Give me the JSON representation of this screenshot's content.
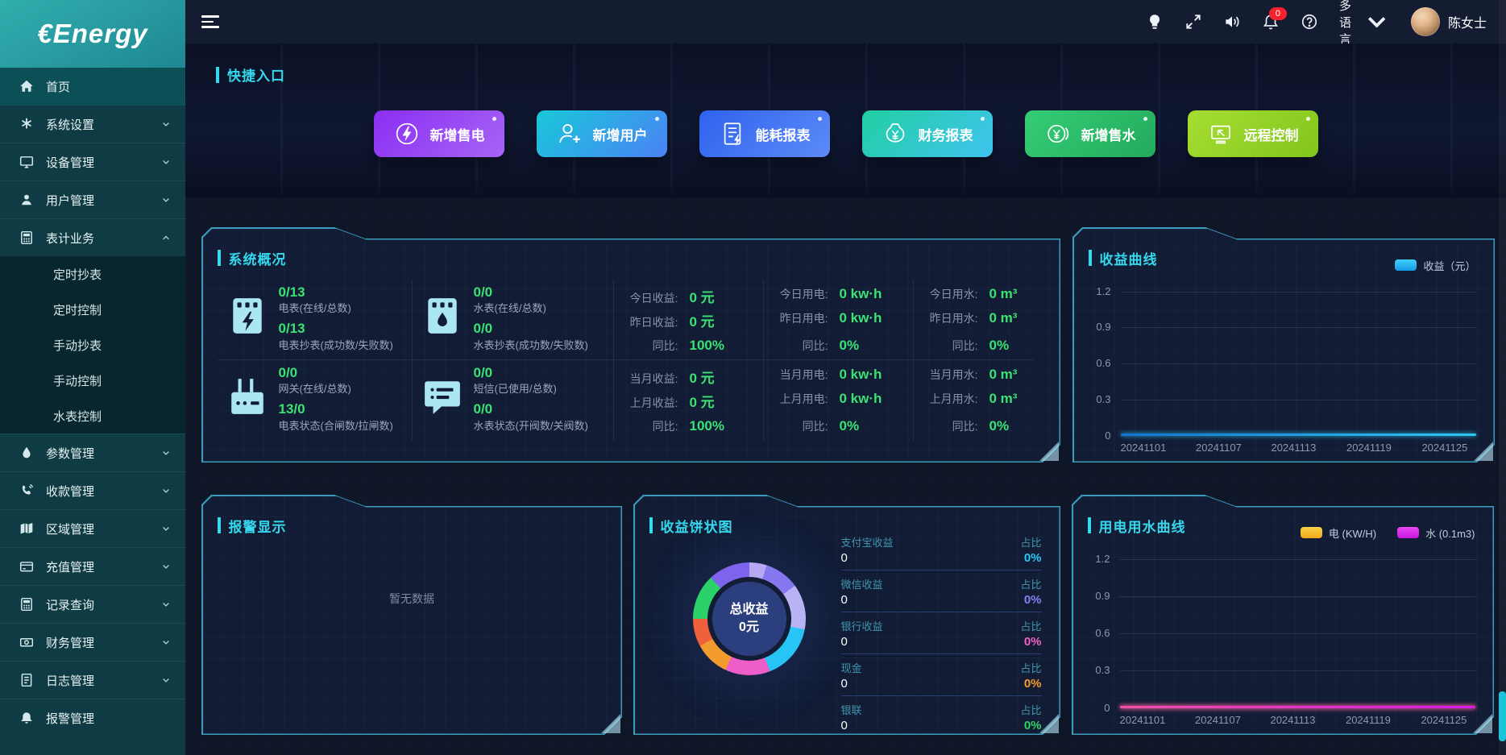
{
  "colors": {
    "accent_cyan": "#35d8ec",
    "panel_border": "#3ec2e0",
    "value_green": "#3ce273",
    "badge_red": "#f5222d",
    "sidebar_teal": "#2aa2a6"
  },
  "logo_text": "€Energy",
  "topbar": {
    "badge_count": "0",
    "language_label": "多语言",
    "username": "陈女士",
    "icons": [
      "light-bulb",
      "fullscreen",
      "volume",
      "notifications",
      "help"
    ]
  },
  "sidebar": {
    "items": [
      {
        "label": "首页",
        "icon": "home-icon"
      },
      {
        "label": "系统设置",
        "icon": "settings-icon"
      },
      {
        "label": "设备管理",
        "icon": "device-icon"
      },
      {
        "label": "用户管理",
        "icon": "user-icon"
      },
      {
        "label": "表计业务",
        "icon": "meter-icon"
      },
      {
        "label": "参数管理",
        "icon": "droplet-icon"
      },
      {
        "label": "收款管理",
        "icon": "payment-icon"
      },
      {
        "label": "区域管理",
        "icon": "map-icon"
      },
      {
        "label": "充值管理",
        "icon": "recharge-icon"
      },
      {
        "label": "记录查询",
        "icon": "records-icon"
      },
      {
        "label": "财务管理",
        "icon": "finance-icon"
      },
      {
        "label": "日志管理",
        "icon": "log-icon"
      },
      {
        "label": "报警管理",
        "icon": "alarm-icon"
      }
    ],
    "submenu": [
      {
        "label": "定时抄表"
      },
      {
        "label": "定时控制"
      },
      {
        "label": "手动抄表"
      },
      {
        "label": "手动控制"
      },
      {
        "label": "水表控制"
      }
    ]
  },
  "quick": {
    "title": "快捷入口",
    "buttons": [
      {
        "label": "新增售电",
        "icon": "bolt-circle-icon",
        "gradient": "linear-gradient(135deg,#8a2ef2,#a765f6)"
      },
      {
        "label": "新增用户",
        "icon": "user-plus-icon",
        "gradient": "linear-gradient(135deg,#18c8d8,#4b82f6)"
      },
      {
        "label": "能耗报表",
        "icon": "energy-report-icon",
        "gradient": "linear-gradient(135deg,#2f62ee,#5d8bf8)"
      },
      {
        "label": "财务报表",
        "icon": "money-bag-icon",
        "gradient": "linear-gradient(135deg,#22cfa2,#3fc3ef)"
      },
      {
        "label": "新增售水",
        "icon": "coin-yen-icon",
        "gradient": "linear-gradient(135deg,#34cd76,#23aa5c)"
      },
      {
        "label": "远程控制",
        "icon": "remote-control-icon",
        "gradient": "linear-gradient(135deg,#a6de31,#82c51d)"
      }
    ]
  },
  "overview": {
    "title": "系统概况",
    "cells": [
      {
        "v1": "0/13",
        "l1": "电表(在线/总数)",
        "v2": "0/13",
        "l2": "电表抄表(成功数/失败数)"
      },
      {
        "v1": "0/0",
        "l1": "水表(在线/总数)",
        "v2": "0/0",
        "l2": "水表抄表(成功数/失败数)"
      },
      {
        "r": [
          [
            "今日收益:",
            "0 元"
          ],
          [
            "昨日收益:",
            "0 元"
          ],
          [
            "同比:",
            "100%"
          ]
        ]
      },
      {
        "r": [
          [
            "今日用电:",
            "0 kw·h"
          ],
          [
            "昨日用电:",
            "0 kw·h"
          ],
          [
            "同比:",
            "0%"
          ]
        ]
      },
      {
        "r": [
          [
            "今日用水:",
            "0 m³"
          ],
          [
            "昨日用水:",
            "0 m³"
          ],
          [
            "同比:",
            "0%"
          ]
        ]
      },
      {
        "v1": "0/0",
        "l1": "网关(在线/总数)",
        "v2": "13/0",
        "l2": "电表状态(合闸数/拉闸数)"
      },
      {
        "v1": "0/0",
        "l1": "短信(已使用/总数)",
        "v2": "0/0",
        "l2": "水表状态(开阀数/关阀数)"
      },
      {
        "r": [
          [
            "当月收益:",
            "0 元"
          ],
          [
            "上月收益:",
            "0 元"
          ],
          [
            "同比:",
            "100%"
          ]
        ]
      },
      {
        "r": [
          [
            "当月用电:",
            "0 kw·h"
          ],
          [
            "上月用电:",
            "0 kw·h"
          ],
          [
            "同比:",
            "0%"
          ]
        ]
      },
      {
        "r": [
          [
            "当月用水:",
            "0 m³"
          ],
          [
            "上月用水:",
            "0 m³"
          ],
          [
            "同比:",
            "0%"
          ]
        ]
      }
    ]
  },
  "alarm": {
    "title": "报警显示",
    "empty": "暂无数据"
  },
  "chart_data": [
    {
      "type": "line",
      "title": "收益曲线",
      "series": [
        {
          "name": "收益（元）",
          "color": "#2fc6f2",
          "color2": "#1573cf",
          "swatch": "linear-gradient(180deg,#3fd0fa,#179be8)",
          "values": [
            0,
            0,
            0,
            0,
            0
          ]
        }
      ],
      "x_ticks": [
        "20241101",
        "20241107",
        "20241113",
        "20241119",
        "20241125"
      ],
      "y_ticks": [
        1.2,
        0.9,
        0.6,
        0.3,
        0
      ],
      "ylim": [
        0,
        1.2
      ],
      "grid": true,
      "legend_position": "top-right",
      "note": "flat zero line, daily data 20241101-20241130"
    },
    {
      "type": "pie",
      "title": "收益饼状图",
      "center_line1": "总收益",
      "center_line2": "0元",
      "categories": [
        "支付宝收益",
        "微信收益",
        "银行收益",
        "现金",
        "银联"
      ],
      "values": [
        0,
        0,
        0,
        0,
        0
      ],
      "ratio_label": "占比",
      "ratios": [
        "0%",
        "0%",
        "0%",
        "0%",
        "0%"
      ],
      "colors": [
        "#29c8f5",
        "#8b7cf2",
        "#f060c8",
        "#f59a28",
        "#2ed164"
      ],
      "placeholder_segments": [
        {
          "color": "#b7a8f4",
          "weight": 5
        },
        {
          "color": "#8577ee",
          "weight": 10
        },
        {
          "color": "#b9b2f5",
          "weight": 13
        },
        {
          "color": "#27c5f6",
          "weight": 16
        },
        {
          "color": "#ee5ec9",
          "weight": 13
        },
        {
          "color": "#f49b2e",
          "weight": 10
        },
        {
          "color": "#f1603d",
          "weight": 8
        },
        {
          "color": "#2bd169",
          "weight": 13
        },
        {
          "color": "#7e63ec",
          "weight": 12
        }
      ]
    },
    {
      "type": "line",
      "title": "用电用水曲线",
      "series": [
        {
          "name": "电 (KW/H)",
          "color": "#f2b41e",
          "color2": "#f8d04a",
          "swatch": "linear-gradient(180deg,#fad34a,#f0a81c)",
          "values": [
            0,
            0,
            0,
            0,
            0
          ]
        },
        {
          "name": "水 (0.1m3)",
          "color": "#d91ae8",
          "color2": "#f050a8",
          "swatch": "linear-gradient(180deg,#e84af0,#c916e0)",
          "values": [
            0,
            0,
            0,
            0,
            0
          ]
        }
      ],
      "x_ticks": [
        "20241101",
        "20241107",
        "20241113",
        "20241119",
        "20241125"
      ],
      "y_ticks": [
        1.2,
        0.9,
        0.6,
        0.3,
        0
      ],
      "ylim": [
        0,
        1.2
      ],
      "grid": true,
      "legend_position": "top-right",
      "note": "flat zero lines, daily data 20241101-20241130"
    }
  ]
}
